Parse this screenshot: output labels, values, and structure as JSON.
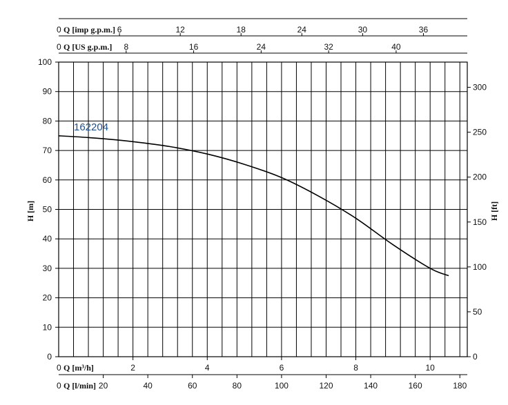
{
  "chart_data": {
    "type": "line",
    "series": [
      {
        "name": "162204",
        "x": [
          0,
          1,
          2,
          3,
          4,
          5,
          6,
          7,
          8,
          9,
          10,
          10.5
        ],
        "y": [
          75,
          74.2,
          73,
          71.3,
          68.8,
          65.3,
          60.8,
          54.5,
          47,
          38,
          30,
          27.5
        ]
      }
    ],
    "x": {
      "label": "Q [m³/h]",
      "range": [
        0,
        11
      ],
      "ticks": [
        0,
        2,
        4,
        6,
        8,
        10
      ],
      "minor_grid_step": 0.4
    },
    "y_left": {
      "label": "H [m]",
      "range": [
        0,
        100
      ],
      "ticks": [
        0,
        10,
        20,
        30,
        40,
        50,
        60,
        70,
        80,
        90,
        100
      ]
    },
    "y_right": {
      "label": "H [ft]",
      "ticks": [
        0,
        50,
        100,
        150,
        200,
        250,
        300
      ],
      "m_per_unit": 0.3048
    },
    "top_axes": [
      {
        "label": "Q [imp g.p.m.]",
        "ticks": [
          0,
          6,
          12,
          18,
          24,
          30,
          36
        ],
        "m3h_per_unit": 0.27276
      },
      {
        "label": "Q [US g.p.m.]",
        "ticks": [
          0,
          8,
          16,
          24,
          32,
          40
        ],
        "m3h_per_unit": 0.22712
      }
    ],
    "bottom_axis_2": {
      "label": "Q [l/min]",
      "ticks": [
        0,
        20,
        40,
        60,
        80,
        100,
        120,
        140,
        160,
        180
      ],
      "m3h_per_unit": 0.06
    },
    "grid": true,
    "colors": {
      "curve": "#000000",
      "series_label": "#1f4e8c",
      "grid": "#000000"
    }
  }
}
